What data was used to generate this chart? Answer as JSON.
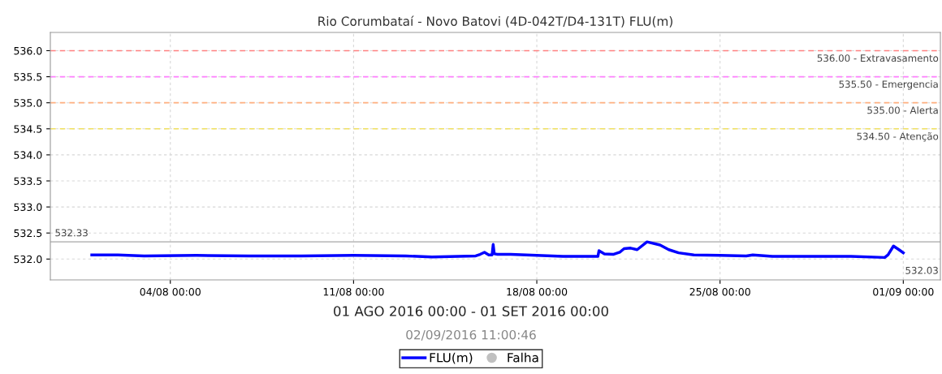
{
  "chart_data": {
    "type": "line",
    "title": "Rio Corumbataí - Novo Batovi (4D-042T/D4-131T) FLU(m)",
    "xlim": [
      "2016-07-30T10:00",
      "2016-09-02T10:00"
    ],
    "xticks": [
      {
        "value": "2016-08-04",
        "label": "04/08 00:00"
      },
      {
        "value": "2016-08-11",
        "label": "11/08 00:00"
      },
      {
        "value": "2016-08-18",
        "label": "18/08 00:00"
      },
      {
        "value": "2016-08-25",
        "label": "25/08 00:00"
      },
      {
        "value": "2016-09-01",
        "label": "01/09 00:00"
      }
    ],
    "ylim": [
      531.6,
      536.35
    ],
    "yticks": [
      {
        "value": 532,
        "label": "532.0"
      },
      532.5,
      {
        "value": 533,
        "label": "533.0"
      },
      533.5,
      {
        "value": 534,
        "label": "534.0"
      },
      534.5,
      {
        "value": 535,
        "label": "535.0"
      },
      535.5,
      {
        "value": 536,
        "label": "536.0"
      }
    ],
    "grid": true,
    "legend": "bottom",
    "line_style": "solid",
    "marker": "none",
    "series": [
      {
        "name": "FLU(m)",
        "color": "#0000ff",
        "x": [
          "2016-08-01T00:00",
          "2016-08-02T00:00",
          "2016-08-03T00:00",
          "2016-08-05T00:00",
          "2016-08-07T00:00",
          "2016-08-09T00:00",
          "2016-08-11T00:00",
          "2016-08-13T00:00",
          "2016-08-14T00:00",
          "2016-08-15T00:00",
          "2016-08-15T16:00",
          "2016-08-15T20:00",
          "2016-08-16T00:00",
          "2016-08-16T04:00",
          "2016-08-16T07:00",
          "2016-08-16T08:00",
          "2016-08-16T09:00",
          "2016-08-16T12:00",
          "2016-08-17T00:00",
          "2016-08-18T00:00",
          "2016-08-19T00:00",
          "2016-08-20T00:00",
          "2016-08-20T08:00",
          "2016-08-20T09:00",
          "2016-08-20T14:00",
          "2016-08-20T22:00",
          "2016-08-21T04:00",
          "2016-08-21T08:00",
          "2016-08-21T14:00",
          "2016-08-21T20:00",
          "2016-08-22T05:00",
          "2016-08-22T17:00",
          "2016-08-23T01:00",
          "2016-08-23T10:00",
          "2016-08-24T00:00",
          "2016-08-25T00:00",
          "2016-08-26T00:00",
          "2016-08-26T06:00",
          "2016-08-27T00:00",
          "2016-08-28T00:00",
          "2016-08-29T00:00",
          "2016-08-30T00:00",
          "2016-08-31T07:00",
          "2016-08-31T10:00",
          "2016-08-31T15:00",
          "2016-08-31T20:00",
          "2016-09-01T00:00"
        ],
        "values": [
          532.08,
          532.08,
          532.06,
          532.07,
          532.06,
          532.06,
          532.07,
          532.06,
          532.04,
          532.05,
          532.06,
          532.09,
          532.13,
          532.08,
          532.08,
          532.28,
          532.1,
          532.09,
          532.09,
          532.07,
          532.05,
          532.05,
          532.05,
          532.16,
          532.1,
          532.09,
          532.13,
          532.2,
          532.21,
          532.18,
          532.33,
          532.27,
          532.18,
          532.12,
          532.08,
          532.07,
          532.06,
          532.08,
          532.05,
          532.05,
          532.05,
          532.05,
          532.03,
          532.08,
          532.25,
          532.18,
          532.12
        ]
      },
      {
        "name": "Falha",
        "color": "#c0c0c0",
        "type": "scatter",
        "marker": "circle"
      }
    ],
    "ref_lines": [
      {
        "axis": "y",
        "value": 536.0,
        "label": "536.00 - Extravasamento",
        "color": "#ff8080",
        "line_style": "dashed"
      },
      {
        "axis": "y",
        "value": 535.5,
        "label": "535.50 - Emergencia",
        "color": "#ff80ff",
        "line_style": "dashed"
      },
      {
        "axis": "y",
        "value": 535.0,
        "label": "535.00 - Alerta",
        "color": "#ffb080",
        "line_style": "dashed"
      },
      {
        "axis": "y",
        "value": 534.5,
        "label": "534.50 - Atenção",
        "color": "#f0e060",
        "line_style": "dashed"
      },
      {
        "axis": "y",
        "value": 532.33,
        "label": "532.33",
        "color": "#c0c0c0",
        "line_style": "solid"
      }
    ],
    "annotations": [
      "532.03",
      "01 AGO 2016 00:00 - 01 SET 2016 00:00",
      "02/09/2016 11:00:46"
    ]
  }
}
